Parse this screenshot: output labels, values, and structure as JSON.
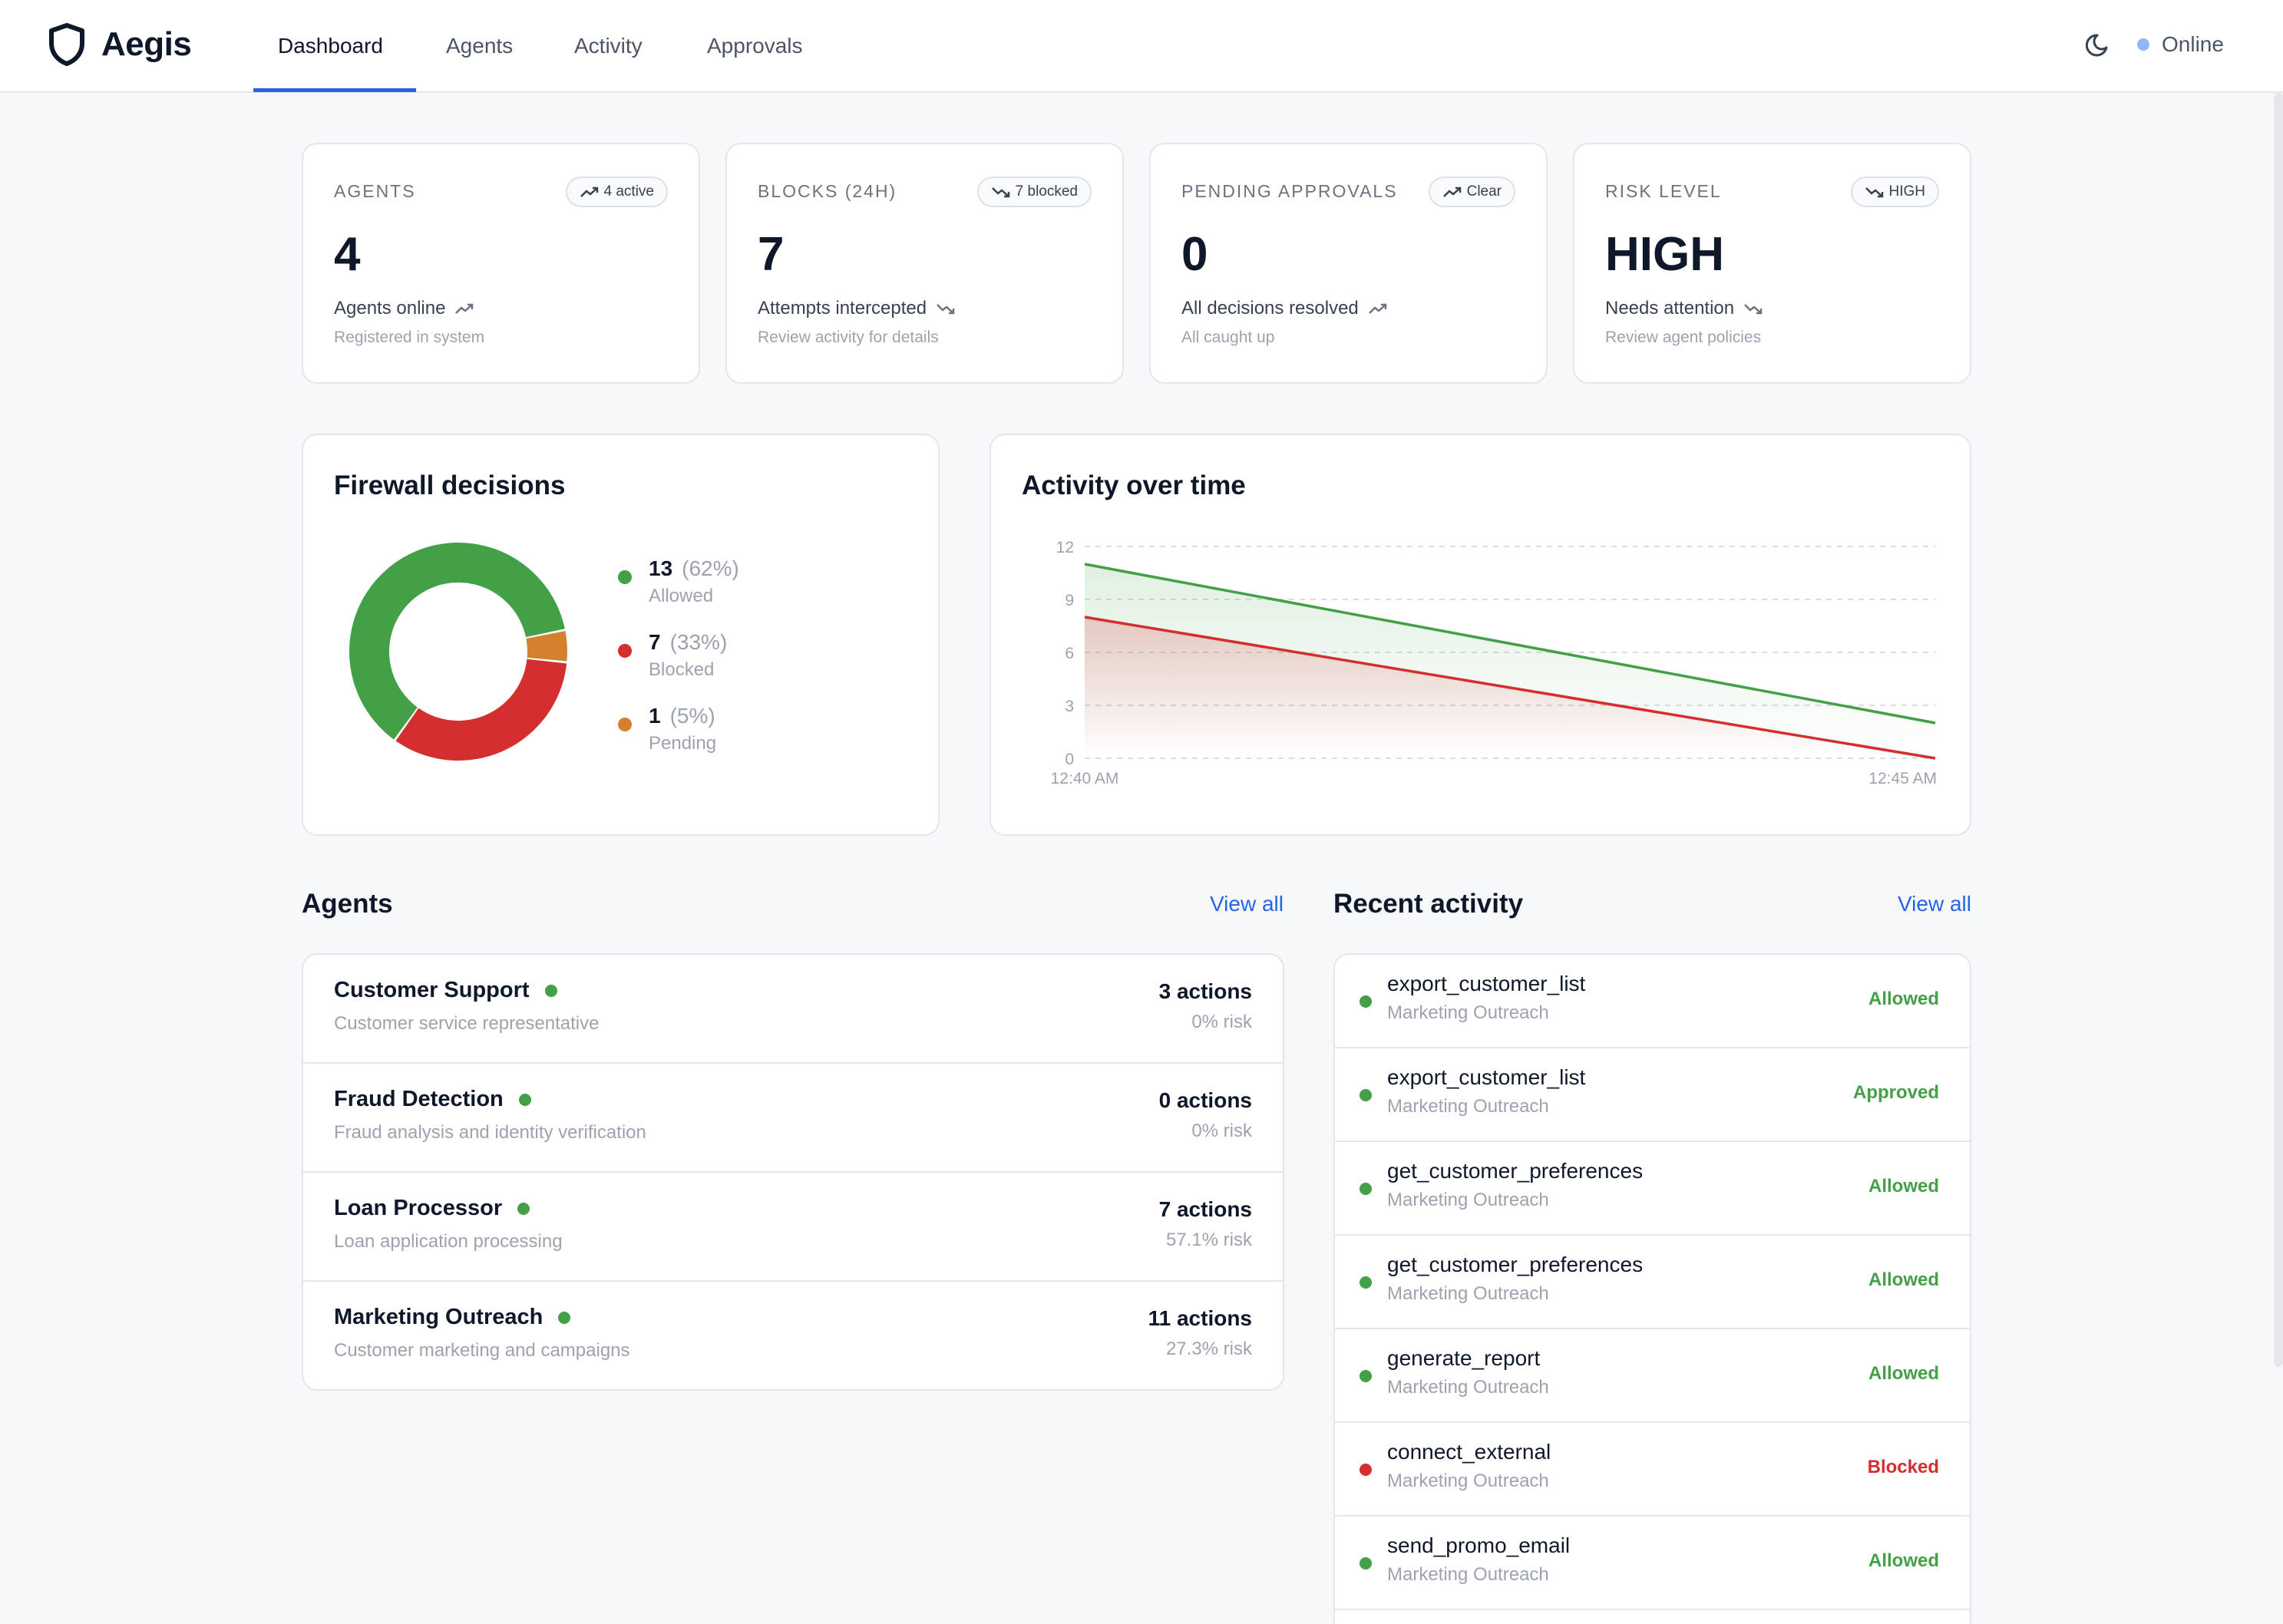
{
  "app": {
    "name": "Aegis"
  },
  "nav": {
    "tabs": [
      {
        "label": "Dashboard",
        "active": true
      },
      {
        "label": "Agents",
        "active": false
      },
      {
        "label": "Activity",
        "active": false
      },
      {
        "label": "Approvals",
        "active": false
      }
    ],
    "theme_icon": "moon-icon",
    "status_label": "Online"
  },
  "stats": [
    {
      "label": "AGENTS",
      "badge": "4 active",
      "badge_trend": "up",
      "value": "4",
      "sub": "Agents online",
      "sub_trend": "up",
      "note": "Registered in system"
    },
    {
      "label": "BLOCKS (24H)",
      "badge": "7 blocked",
      "badge_trend": "down",
      "value": "7",
      "sub": "Attempts intercepted",
      "sub_trend": "down",
      "note": "Review activity for details"
    },
    {
      "label": "PENDING APPROVALS",
      "badge": "Clear",
      "badge_trend": "up",
      "value": "0",
      "sub": "All decisions resolved",
      "sub_trend": "up",
      "note": "All caught up"
    },
    {
      "label": "RISK LEVEL",
      "badge": "HIGH",
      "badge_trend": "down",
      "value": "HIGH",
      "sub": "Needs attention",
      "sub_trend": "down",
      "note": "Review agent policies"
    }
  ],
  "firewall": {
    "title": "Firewall decisions",
    "legend": [
      {
        "count": "13",
        "pct": "(62%)",
        "label": "Allowed"
      },
      {
        "count": "7",
        "pct": "(33%)",
        "label": "Blocked"
      },
      {
        "count": "1",
        "pct": "(5%)",
        "label": "Pending"
      }
    ]
  },
  "activity_chart": {
    "title": "Activity over time"
  },
  "colors": {
    "allowed": "#43a047",
    "blocked": "#d32f2f",
    "pending": "#d4812e",
    "accent": "#2563eb"
  },
  "chart_data": [
    {
      "type": "pie",
      "variant": "donut",
      "categories": [
        "Allowed",
        "Blocked",
        "Pending"
      ],
      "values": [
        13,
        7,
        1
      ],
      "percentages": [
        62,
        33,
        5
      ],
      "title": "Firewall decisions"
    },
    {
      "type": "area",
      "title": "Activity over time",
      "x": [
        "12:40 AM",
        "12:45 AM"
      ],
      "series": [
        {
          "values": [
            11,
            2
          ],
          "color": "#43a047"
        },
        {
          "values": [
            8,
            0
          ],
          "color": "#d32f2f"
        }
      ],
      "ylim": [
        0,
        12
      ],
      "yticks": [
        "0",
        "3",
        "6",
        "9",
        "12"
      ],
      "grid": true
    }
  ],
  "agents_section": {
    "title": "Agents",
    "view_all": "View all",
    "items": [
      {
        "name": "Customer Support",
        "desc": "Customer service representative",
        "actions": "3 actions",
        "risk": "0% risk"
      },
      {
        "name": "Fraud Detection",
        "desc": "Fraud analysis and identity verification",
        "actions": "0 actions",
        "risk": "0% risk"
      },
      {
        "name": "Loan Processor",
        "desc": "Loan application processing",
        "actions": "7 actions",
        "risk": "57.1% risk"
      },
      {
        "name": "Marketing Outreach",
        "desc": "Customer marketing and campaigns",
        "actions": "11 actions",
        "risk": "27.3% risk"
      }
    ]
  },
  "activity_section": {
    "title": "Recent activity",
    "view_all": "View all",
    "items": [
      {
        "name": "export_customer_list",
        "agent": "Marketing Outreach",
        "status": "Allowed",
        "kind": "allowed"
      },
      {
        "name": "export_customer_list",
        "agent": "Marketing Outreach",
        "status": "Approved",
        "kind": "allowed"
      },
      {
        "name": "get_customer_preferences",
        "agent": "Marketing Outreach",
        "status": "Allowed",
        "kind": "allowed"
      },
      {
        "name": "get_customer_preferences",
        "agent": "Marketing Outreach",
        "status": "Allowed",
        "kind": "allowed"
      },
      {
        "name": "generate_report",
        "agent": "Marketing Outreach",
        "status": "Allowed",
        "kind": "allowed"
      },
      {
        "name": "connect_external",
        "agent": "Marketing Outreach",
        "status": "Blocked",
        "kind": "blocked"
      },
      {
        "name": "send_promo_email",
        "agent": "Marketing Outreach",
        "status": "Allowed",
        "kind": "allowed"
      }
    ]
  }
}
